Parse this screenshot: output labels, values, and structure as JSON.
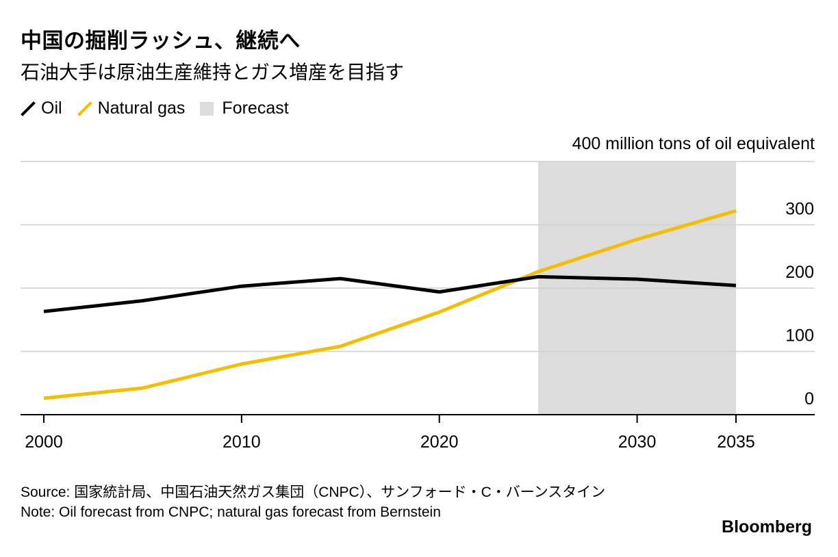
{
  "title": "中国の掘削ラッシュ、継続へ",
  "subtitle": "石油大手は原油生産維持とガス増産を目指す",
  "legend": {
    "oil": "Oil",
    "gas": "Natural gas",
    "forecast": "Forecast"
  },
  "colors": {
    "oil": "#000000",
    "gas": "#f5bd00",
    "forecast": "#dcdcdc",
    "grid": "#cfcfcf"
  },
  "footer": {
    "source": "Source: 国家統計局、中国石油天然ガス集団（CNPC）、サンフォード・C・バーンスタイン",
    "note": "Note: Oil forecast from CNPC; natural gas forecast from Bernstein",
    "brand": "Bloomberg"
  },
  "chart_data": {
    "type": "line",
    "title": "中国の掘削ラッシュ、継続へ",
    "ylabel": "400 million tons of oil equivalent",
    "xlim": [
      2000,
      2038
    ],
    "ylim": [
      0,
      400
    ],
    "xticks": [
      2000,
      2010,
      2020,
      2030,
      2035
    ],
    "yticks": [
      0,
      100,
      200,
      300
    ],
    "grid": true,
    "forecast_range": [
      2025,
      2035
    ],
    "series": [
      {
        "name": "Oil",
        "x": [
          2000,
          2005,
          2010,
          2015,
          2020,
          2025,
          2030,
          2035
        ],
        "values": [
          163,
          180,
          203,
          215,
          194,
          218,
          214,
          204
        ]
      },
      {
        "name": "Natural gas",
        "x": [
          2000,
          2005,
          2010,
          2015,
          2020,
          2025,
          2030,
          2035
        ],
        "values": [
          26,
          42,
          80,
          108,
          162,
          226,
          277,
          322
        ]
      }
    ]
  }
}
